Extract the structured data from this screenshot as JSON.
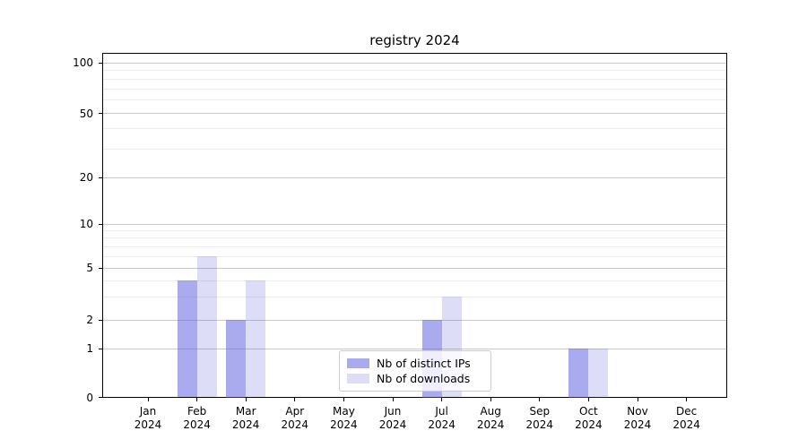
{
  "title": "registry 2024",
  "chart_data": {
    "type": "bar",
    "title": "registry 2024",
    "categories": [
      "Jan 2024",
      "Feb 2024",
      "Mar 2024",
      "Apr 2024",
      "May 2024",
      "Jun 2024",
      "Jul 2024",
      "Aug 2024",
      "Sep 2024",
      "Oct 2024",
      "Nov 2024",
      "Dec 2024"
    ],
    "series": [
      {
        "name": "Nb of distinct IPs",
        "color": "#aaaaee",
        "color_rgba": "rgba(85,85,221,0.5)",
        "values": [
          0,
          4,
          2,
          0,
          0,
          0,
          2,
          0,
          0,
          1,
          0,
          0
        ]
      },
      {
        "name": "Nb of downloads",
        "color": "#ddddf8",
        "color_rgba": "rgba(85,85,221,0.2)",
        "values": [
          0,
          6,
          4,
          0,
          0,
          0,
          3,
          0,
          0,
          1,
          0,
          0
        ]
      }
    ],
    "xlabel": "",
    "ylabel": "",
    "yscale": "symlog",
    "ylim": [
      0,
      115
    ],
    "y_major_ticks": [
      0,
      1,
      2,
      5,
      10,
      20,
      50,
      100
    ],
    "y_minor_gridlines": [
      3,
      4,
      6,
      7,
      8,
      9,
      30,
      40,
      60,
      70,
      80,
      90
    ],
    "grid": true,
    "legend_position": "lower center"
  }
}
